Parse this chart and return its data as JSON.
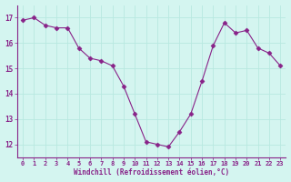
{
  "x": [
    0,
    1,
    2,
    3,
    4,
    5,
    6,
    7,
    8,
    9,
    10,
    11,
    12,
    13,
    14,
    15,
    16,
    17,
    18,
    19,
    20,
    21,
    22,
    23
  ],
  "y": [
    16.9,
    17.0,
    16.7,
    16.6,
    16.6,
    15.8,
    15.4,
    15.3,
    15.1,
    14.3,
    13.2,
    12.1,
    12.0,
    11.9,
    12.5,
    13.2,
    14.5,
    15.9,
    16.8,
    16.4,
    16.5,
    15.8,
    15.6,
    15.1
  ],
  "line_color": "#882288",
  "marker": "D",
  "marker_size": 2.5,
  "bg_color": "#d4f5f0",
  "grid_color": "#b8e8e0",
  "xlabel": "Windchill (Refroidissement éolien,°C)",
  "xlabel_color": "#882288",
  "tick_color": "#882288",
  "axis_line_color": "#882288",
  "ylim": [
    11.5,
    17.5
  ],
  "xlim": [
    -0.5,
    23.5
  ],
  "yticks": [
    12,
    13,
    14,
    15,
    16,
    17
  ],
  "xticks": [
    0,
    1,
    2,
    3,
    4,
    5,
    6,
    7,
    8,
    9,
    10,
    11,
    12,
    13,
    14,
    15,
    16,
    17,
    18,
    19,
    20,
    21,
    22,
    23
  ],
  "tick_fontsize": 5.0,
  "ytick_fontsize": 5.5,
  "xlabel_fontsize": 5.5
}
